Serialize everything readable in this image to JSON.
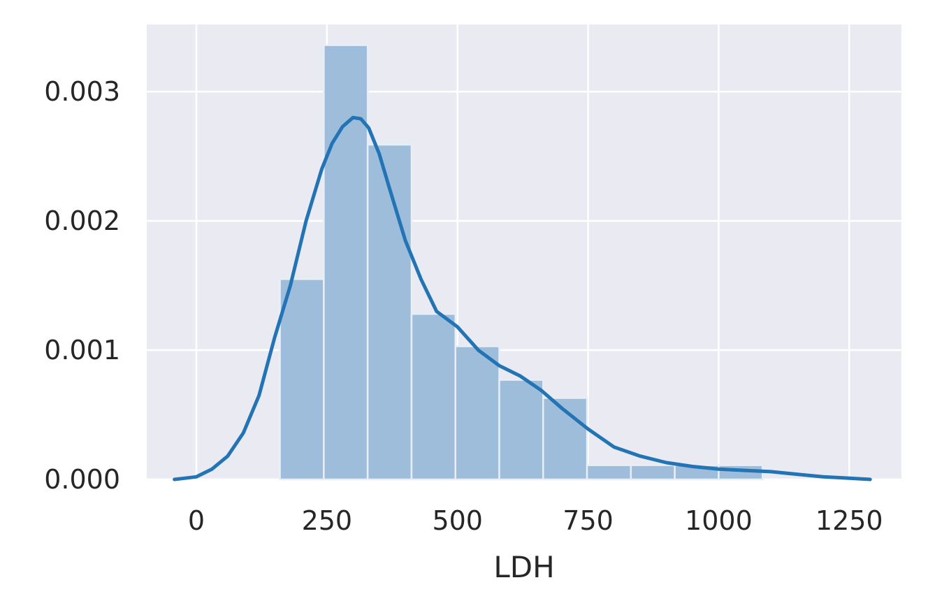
{
  "chart_data": {
    "type": "histogram",
    "xlabel": "LDH",
    "ylabel": "",
    "xlim": [
      -95,
      1350
    ],
    "ylim": [
      0,
      0.00352
    ],
    "xticks": [
      0,
      250,
      500,
      750,
      1000,
      1250
    ],
    "xtick_labels": [
      "0",
      "250",
      "500",
      "750",
      "1000",
      "1250"
    ],
    "yticks": [
      0.0,
      0.001,
      0.002,
      0.003
    ],
    "ytick_labels": [
      "0.000",
      "0.001",
      "0.002",
      "0.003"
    ],
    "grid": true,
    "bars": [
      {
        "x0": 160,
        "x1": 244,
        "value": 0.00155
      },
      {
        "x0": 244,
        "x1": 328,
        "value": 0.00336
      },
      {
        "x0": 328,
        "x1": 412,
        "value": 0.00259
      },
      {
        "x0": 412,
        "x1": 496,
        "value": 0.00128
      },
      {
        "x0": 496,
        "x1": 580,
        "value": 0.00103
      },
      {
        "x0": 580,
        "x1": 664,
        "value": 0.00077
      },
      {
        "x0": 664,
        "x1": 748,
        "value": 0.00063
      },
      {
        "x0": 748,
        "x1": 832,
        "value": 0.00011
      },
      {
        "x0": 832,
        "x1": 916,
        "value": 0.00011
      },
      {
        "x0": 916,
        "x1": 1000,
        "value": 0.00011
      },
      {
        "x0": 1000,
        "x1": 1084,
        "value": 0.00011
      }
    ],
    "kde": {
      "x": [
        -42,
        0,
        30,
        60,
        90,
        120,
        150,
        180,
        210,
        240,
        260,
        280,
        300,
        315,
        330,
        350,
        370,
        400,
        430,
        460,
        500,
        540,
        580,
        620,
        660,
        700,
        750,
        800,
        850,
        900,
        950,
        1000,
        1050,
        1100,
        1150,
        1200,
        1250,
        1290
      ],
      "y": [
        0.0,
        2e-05,
        8e-05,
        0.00018,
        0.00036,
        0.00065,
        0.0011,
        0.0015,
        0.002,
        0.0024,
        0.0026,
        0.00273,
        0.0028,
        0.00279,
        0.00272,
        0.00252,
        0.00225,
        0.00185,
        0.00155,
        0.0013,
        0.00118,
        0.001,
        0.00088,
        0.0008,
        0.00069,
        0.00055,
        0.00039,
        0.00025,
        0.00018,
        0.00013,
        0.0001,
        8e-05,
        7e-05,
        6e-05,
        4e-05,
        2e-05,
        1e-05,
        0.0
      ]
    },
    "colors": {
      "background": "#eaeaf2",
      "grid": "#ffffff",
      "bar_fill": "#9dbddb",
      "bar_edge": "#e8eef6",
      "kde_line": "#2274b5",
      "text": "#262626"
    }
  }
}
